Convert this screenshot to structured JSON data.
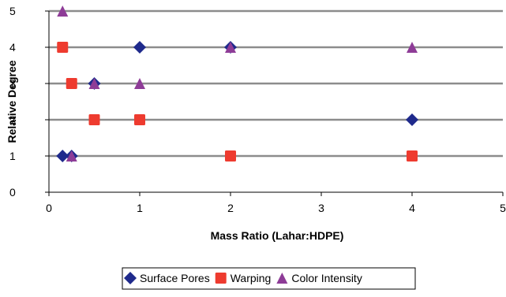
{
  "chart_data": {
    "type": "scatter",
    "title": "",
    "xlabel": "Mass Ratio (Lahar:HDPE)",
    "ylabel": "Relative Degree",
    "xlim": [
      0,
      5
    ],
    "ylim": [
      0,
      5
    ],
    "xticks": [
      "0",
      "1",
      "2",
      "3",
      "4",
      "5"
    ],
    "yticks": [
      "0",
      "1",
      "2",
      "3",
      "4",
      "5"
    ],
    "grid": "horizontal",
    "legend_position": "bottom",
    "series": [
      {
        "name": "Surface Pores",
        "marker": "diamond",
        "color": "#1f2a8c",
        "points": [
          [
            0.15,
            1
          ],
          [
            0.25,
            1
          ],
          [
            0.5,
            3
          ],
          [
            1,
            4
          ],
          [
            2,
            4
          ],
          [
            4,
            2
          ]
        ]
      },
      {
        "name": "Warping",
        "marker": "square",
        "color": "#ee3b2f",
        "points": [
          [
            0.15,
            4
          ],
          [
            0.25,
            3
          ],
          [
            0.5,
            2
          ],
          [
            1,
            2
          ],
          [
            2,
            1
          ],
          [
            4,
            1
          ]
        ]
      },
      {
        "name": "Color Intensity",
        "marker": "triangle",
        "color": "#8e3c97",
        "points": [
          [
            0.15,
            5
          ],
          [
            0.25,
            1
          ],
          [
            0.5,
            3
          ],
          [
            1,
            3
          ],
          [
            2,
            4
          ],
          [
            4,
            4
          ]
        ]
      }
    ]
  }
}
